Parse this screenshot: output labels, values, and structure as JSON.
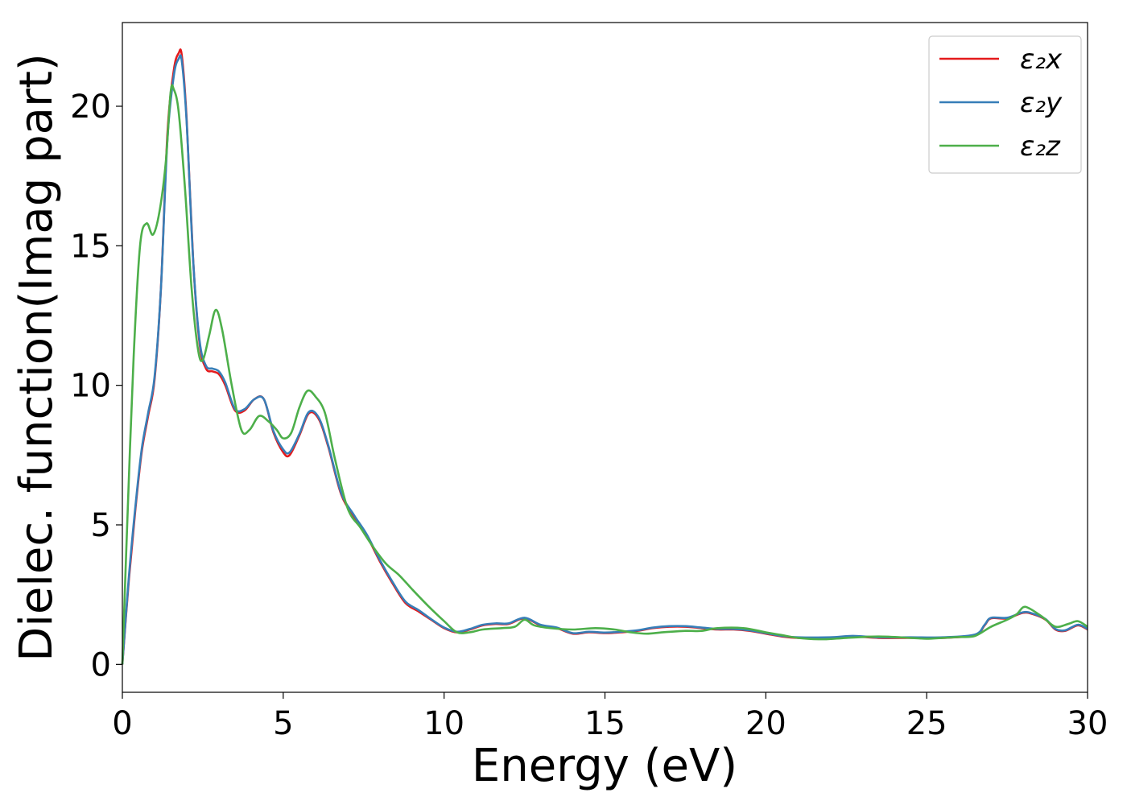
{
  "chart_data": {
    "type": "line",
    "title": "",
    "xlabel": "Energy (eV)",
    "ylabel": "Dielec. function(Imag part)",
    "xlim": [
      0,
      30
    ],
    "ylim": [
      -1,
      23
    ],
    "xticks": [
      0,
      5,
      10,
      15,
      20,
      25,
      30
    ],
    "yticks": [
      0,
      5,
      10,
      15,
      20
    ],
    "grid": false,
    "legend_position": "top-right",
    "series": [
      {
        "name": "ε₂x",
        "color": "#e41a1c",
        "points": [
          [
            0,
            0
          ],
          [
            0.2,
            3.0
          ],
          [
            0.4,
            5.5
          ],
          [
            0.6,
            7.6
          ],
          [
            0.8,
            8.9
          ],
          [
            1.0,
            10.2
          ],
          [
            1.2,
            13.5
          ],
          [
            1.4,
            19.0
          ],
          [
            1.6,
            21.3
          ],
          [
            1.75,
            21.9
          ],
          [
            1.85,
            21.8
          ],
          [
            2.0,
            19.5
          ],
          [
            2.2,
            14.5
          ],
          [
            2.4,
            11.5
          ],
          [
            2.6,
            10.6
          ],
          [
            2.8,
            10.5
          ],
          [
            3.0,
            10.4
          ],
          [
            3.2,
            10.0
          ],
          [
            3.5,
            9.1
          ],
          [
            3.8,
            9.1
          ],
          [
            4.1,
            9.5
          ],
          [
            4.4,
            9.5
          ],
          [
            4.7,
            8.3
          ],
          [
            5.0,
            7.6
          ],
          [
            5.2,
            7.5
          ],
          [
            5.5,
            8.2
          ],
          [
            5.8,
            9.0
          ],
          [
            6.1,
            8.8
          ],
          [
            6.4,
            7.8
          ],
          [
            6.8,
            6.1
          ],
          [
            7.2,
            5.3
          ],
          [
            7.6,
            4.6
          ],
          [
            8.0,
            3.7
          ],
          [
            8.4,
            2.9
          ],
          [
            8.8,
            2.2
          ],
          [
            9.2,
            1.9
          ],
          [
            9.6,
            1.6
          ],
          [
            10.0,
            1.3
          ],
          [
            10.4,
            1.15
          ],
          [
            10.8,
            1.25
          ],
          [
            11.2,
            1.4
          ],
          [
            11.6,
            1.45
          ],
          [
            12.0,
            1.45
          ],
          [
            12.5,
            1.65
          ],
          [
            13.0,
            1.4
          ],
          [
            13.5,
            1.3
          ],
          [
            14.0,
            1.1
          ],
          [
            14.5,
            1.15
          ],
          [
            15.0,
            1.12
          ],
          [
            15.5,
            1.15
          ],
          [
            16.0,
            1.2
          ],
          [
            16.5,
            1.3
          ],
          [
            17.0,
            1.35
          ],
          [
            17.5,
            1.35
          ],
          [
            18.0,
            1.3
          ],
          [
            18.5,
            1.25
          ],
          [
            19.0,
            1.25
          ],
          [
            19.5,
            1.2
          ],
          [
            20.0,
            1.1
          ],
          [
            20.5,
            1.0
          ],
          [
            21.0,
            0.95
          ],
          [
            22.0,
            0.95
          ],
          [
            22.7,
            1.0
          ],
          [
            23.5,
            0.95
          ],
          [
            24.5,
            0.95
          ],
          [
            25.5,
            0.95
          ],
          [
            26.5,
            1.05
          ],
          [
            26.8,
            1.4
          ],
          [
            27.0,
            1.65
          ],
          [
            27.5,
            1.65
          ],
          [
            28.0,
            1.85
          ],
          [
            28.3,
            1.8
          ],
          [
            28.7,
            1.6
          ],
          [
            29.0,
            1.25
          ],
          [
            29.3,
            1.2
          ],
          [
            29.7,
            1.4
          ],
          [
            30.0,
            1.25
          ]
        ]
      },
      {
        "name": "ε₂y",
        "color": "#377eb8",
        "points": [
          [
            0,
            0
          ],
          [
            0.2,
            3.1
          ],
          [
            0.4,
            5.6
          ],
          [
            0.6,
            7.7
          ],
          [
            0.8,
            9.0
          ],
          [
            1.0,
            10.3
          ],
          [
            1.2,
            13.5
          ],
          [
            1.4,
            18.8
          ],
          [
            1.6,
            21.1
          ],
          [
            1.75,
            21.7
          ],
          [
            1.85,
            21.6
          ],
          [
            2.0,
            19.4
          ],
          [
            2.2,
            14.5
          ],
          [
            2.4,
            11.6
          ],
          [
            2.6,
            10.7
          ],
          [
            2.8,
            10.6
          ],
          [
            3.0,
            10.5
          ],
          [
            3.2,
            10.1
          ],
          [
            3.5,
            9.15
          ],
          [
            3.8,
            9.15
          ],
          [
            4.1,
            9.5
          ],
          [
            4.4,
            9.5
          ],
          [
            4.7,
            8.35
          ],
          [
            5.0,
            7.7
          ],
          [
            5.2,
            7.6
          ],
          [
            5.5,
            8.25
          ],
          [
            5.8,
            9.05
          ],
          [
            6.1,
            8.85
          ],
          [
            6.4,
            7.85
          ],
          [
            6.8,
            6.15
          ],
          [
            7.2,
            5.35
          ],
          [
            7.6,
            4.65
          ],
          [
            8.0,
            3.75
          ],
          [
            8.4,
            2.95
          ],
          [
            8.8,
            2.25
          ],
          [
            9.2,
            1.95
          ],
          [
            9.6,
            1.62
          ],
          [
            10.0,
            1.32
          ],
          [
            10.4,
            1.17
          ],
          [
            10.8,
            1.27
          ],
          [
            11.2,
            1.42
          ],
          [
            11.6,
            1.47
          ],
          [
            12.0,
            1.47
          ],
          [
            12.5,
            1.67
          ],
          [
            13.0,
            1.42
          ],
          [
            13.5,
            1.32
          ],
          [
            14.0,
            1.12
          ],
          [
            14.5,
            1.17
          ],
          [
            15.0,
            1.14
          ],
          [
            15.5,
            1.17
          ],
          [
            16.0,
            1.22
          ],
          [
            16.5,
            1.32
          ],
          [
            17.0,
            1.37
          ],
          [
            17.5,
            1.37
          ],
          [
            18.0,
            1.32
          ],
          [
            18.5,
            1.27
          ],
          [
            19.0,
            1.27
          ],
          [
            19.5,
            1.22
          ],
          [
            20.0,
            1.12
          ],
          [
            20.5,
            1.02
          ],
          [
            21.0,
            0.97
          ],
          [
            22.0,
            0.97
          ],
          [
            22.7,
            1.02
          ],
          [
            23.5,
            0.97
          ],
          [
            24.5,
            0.97
          ],
          [
            25.5,
            0.97
          ],
          [
            26.5,
            1.07
          ],
          [
            26.8,
            1.42
          ],
          [
            27.0,
            1.67
          ],
          [
            27.5,
            1.67
          ],
          [
            28.0,
            1.87
          ],
          [
            28.3,
            1.82
          ],
          [
            28.7,
            1.62
          ],
          [
            29.0,
            1.27
          ],
          [
            29.3,
            1.22
          ],
          [
            29.7,
            1.42
          ],
          [
            30.0,
            1.27
          ]
        ]
      },
      {
        "name": "ε₂z",
        "color": "#4daf4a",
        "points": [
          [
            0,
            0
          ],
          [
            0.15,
            5.0
          ],
          [
            0.35,
            11.0
          ],
          [
            0.55,
            15.0
          ],
          [
            0.75,
            15.8
          ],
          [
            0.95,
            15.4
          ],
          [
            1.15,
            16.2
          ],
          [
            1.35,
            18.0
          ],
          [
            1.5,
            20.5
          ],
          [
            1.6,
            20.6
          ],
          [
            1.75,
            19.8
          ],
          [
            1.95,
            17.0
          ],
          [
            2.15,
            13.5
          ],
          [
            2.35,
            11.3
          ],
          [
            2.5,
            10.9
          ],
          [
            2.7,
            11.8
          ],
          [
            2.9,
            12.7
          ],
          [
            3.1,
            12.0
          ],
          [
            3.4,
            10.0
          ],
          [
            3.7,
            8.4
          ],
          [
            3.95,
            8.4
          ],
          [
            4.25,
            8.9
          ],
          [
            4.55,
            8.7
          ],
          [
            4.8,
            8.4
          ],
          [
            5.0,
            8.1
          ],
          [
            5.25,
            8.3
          ],
          [
            5.5,
            9.2
          ],
          [
            5.75,
            9.8
          ],
          [
            6.0,
            9.6
          ],
          [
            6.3,
            9.0
          ],
          [
            6.6,
            7.4
          ],
          [
            7.0,
            5.6
          ],
          [
            7.4,
            4.9
          ],
          [
            7.8,
            4.2
          ],
          [
            8.2,
            3.6
          ],
          [
            8.6,
            3.2
          ],
          [
            9.0,
            2.7
          ],
          [
            9.5,
            2.1
          ],
          [
            10.0,
            1.55
          ],
          [
            10.4,
            1.15
          ],
          [
            10.8,
            1.15
          ],
          [
            11.2,
            1.25
          ],
          [
            11.8,
            1.3
          ],
          [
            12.2,
            1.35
          ],
          [
            12.5,
            1.6
          ],
          [
            12.8,
            1.4
          ],
          [
            13.3,
            1.3
          ],
          [
            14.0,
            1.25
          ],
          [
            14.7,
            1.3
          ],
          [
            15.3,
            1.25
          ],
          [
            15.8,
            1.15
          ],
          [
            16.3,
            1.1
          ],
          [
            16.8,
            1.15
          ],
          [
            17.5,
            1.2
          ],
          [
            18.0,
            1.2
          ],
          [
            18.5,
            1.3
          ],
          [
            19.3,
            1.3
          ],
          [
            20.0,
            1.15
          ],
          [
            20.5,
            1.05
          ],
          [
            21.0,
            0.95
          ],
          [
            21.8,
            0.9
          ],
          [
            22.5,
            0.95
          ],
          [
            23.5,
            1.0
          ],
          [
            24.5,
            0.95
          ],
          [
            25.0,
            0.92
          ],
          [
            25.5,
            0.95
          ],
          [
            26.0,
            0.98
          ],
          [
            26.5,
            1.02
          ],
          [
            27.0,
            1.35
          ],
          [
            27.5,
            1.6
          ],
          [
            27.8,
            1.8
          ],
          [
            28.0,
            2.05
          ],
          [
            28.2,
            2.0
          ],
          [
            28.6,
            1.7
          ],
          [
            29.0,
            1.35
          ],
          [
            29.4,
            1.45
          ],
          [
            29.7,
            1.55
          ],
          [
            30.0,
            1.35
          ]
        ]
      }
    ]
  }
}
